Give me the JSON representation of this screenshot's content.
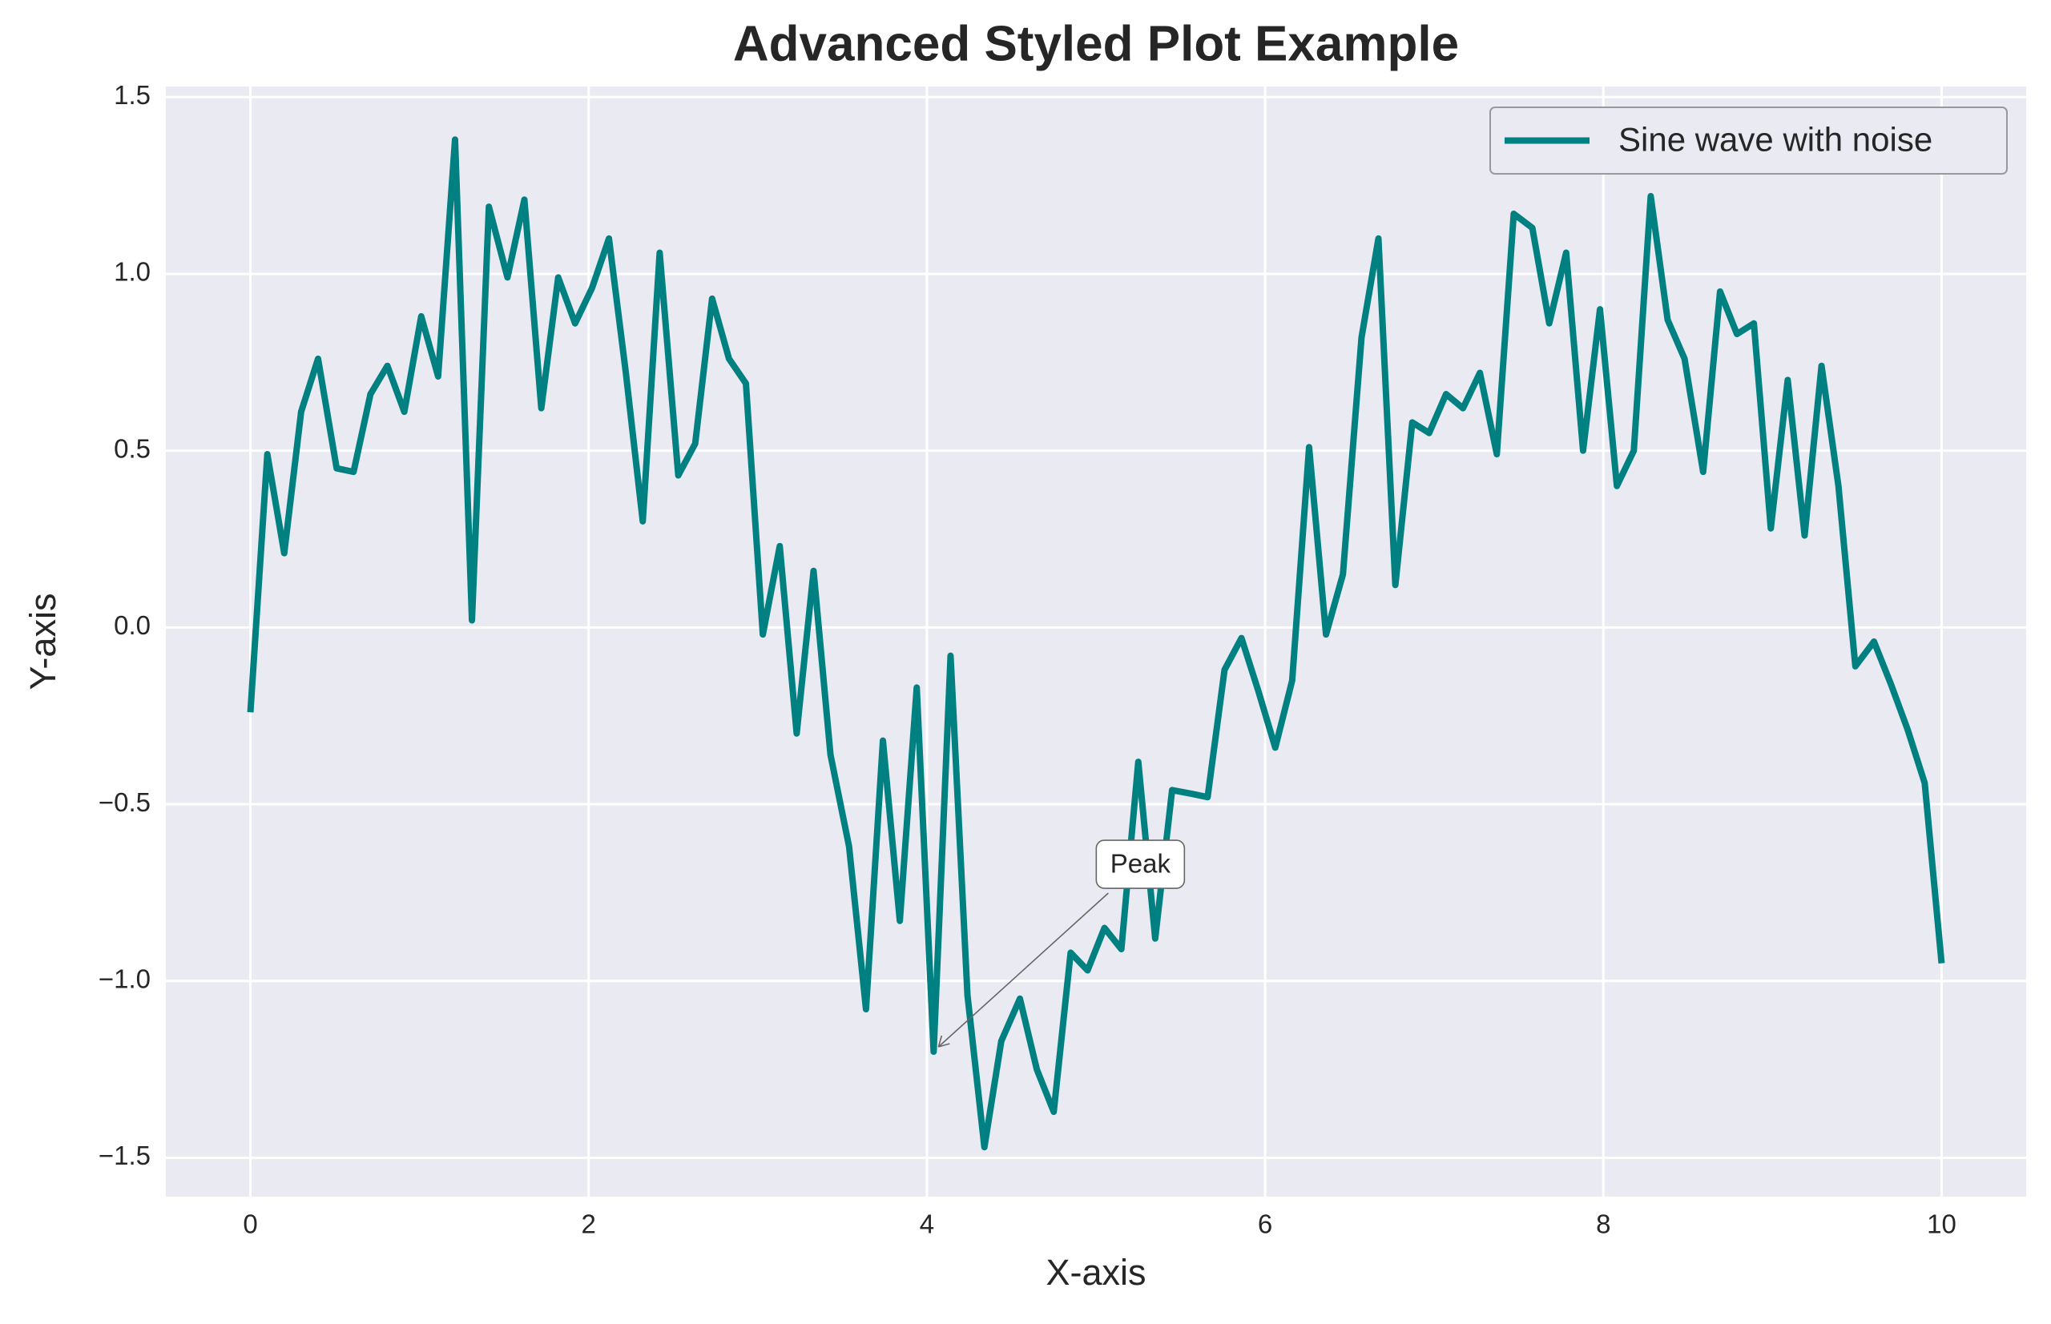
{
  "chart_data": {
    "type": "line",
    "title": "Advanced Styled Plot Example",
    "x_label": "X-axis",
    "y_label": "Y-axis",
    "x": [
      0,
      0.1,
      0.2,
      0.3,
      0.4,
      0.51,
      0.61,
      0.71,
      0.81,
      0.91,
      1.01,
      1.11,
      1.21,
      1.31,
      1.41,
      1.52,
      1.62,
      1.72,
      1.82,
      1.92,
      2.02,
      2.12,
      2.22,
      2.32,
      2.42,
      2.53,
      2.63,
      2.73,
      2.83,
      2.93,
      3.03,
      3.13,
      3.23,
      3.33,
      3.43,
      3.54,
      3.64,
      3.74,
      3.84,
      3.94,
      4.04,
      4.14,
      4.24,
      4.34,
      4.44,
      4.55,
      4.65,
      4.75,
      4.85,
      4.95,
      5.05,
      5.15,
      5.25,
      5.35,
      5.45,
      5.56,
      5.66,
      5.76,
      5.86,
      5.96,
      6.06,
      6.16,
      6.26,
      6.36,
      6.46,
      6.57,
      6.67,
      6.77,
      6.87,
      6.97,
      7.07,
      7.17,
      7.27,
      7.37,
      7.47,
      7.58,
      7.68,
      7.78,
      7.88,
      7.98,
      8.08,
      8.18,
      8.28,
      8.38,
      8.48,
      8.59,
      8.69,
      8.79,
      8.89,
      8.99,
      9.09,
      9.19,
      9.29,
      9.39,
      9.49,
      9.6,
      9.7,
      9.8,
      9.9,
      10
    ],
    "series": [
      {
        "name": "Sine wave with noise",
        "color": "#008080",
        "values": [
          -0.24,
          0.49,
          0.21,
          0.61,
          0.76,
          0.45,
          0.44,
          0.66,
          0.74,
          0.61,
          0.88,
          0.71,
          1.38,
          0.02,
          1.19,
          0.99,
          1.21,
          0.62,
          0.99,
          0.86,
          0.96,
          1.1,
          0.72,
          0.3,
          1.06,
          0.43,
          0.52,
          0.93,
          0.76,
          0.69,
          -0.02,
          0.23,
          -0.3,
          0.16,
          -0.36,
          -0.62,
          -1.08,
          -0.32,
          -0.83,
          -0.17,
          -1.2,
          -0.08,
          -1.04,
          -1.47,
          -1.17,
          -1.05,
          -1.25,
          -1.37,
          -0.92,
          -0.97,
          -0.85,
          -0.91,
          -0.38,
          -0.88,
          -0.46,
          -0.47,
          -0.48,
          -0.12,
          -0.03,
          -0.18,
          -0.34,
          -0.15,
          0.51,
          -0.02,
          0.15,
          0.82,
          1.1,
          0.12,
          0.58,
          0.55,
          0.66,
          0.62,
          0.72,
          0.49,
          1.17,
          1.13,
          0.86,
          1.06,
          0.5,
          0.9,
          0.4,
          0.5,
          1.22,
          0.87,
          0.76,
          0.44,
          0.95,
          0.83,
          0.86,
          0.28,
          0.7,
          0.26,
          0.74,
          0.4,
          -0.11,
          -0.04,
          -0.16,
          -0.29,
          -0.44,
          -0.95
        ]
      }
    ],
    "xlim": [
      -0.5,
      10.5
    ],
    "ylim": [
      -1.61,
      1.53
    ],
    "xticks": [
      0,
      2,
      4,
      6,
      8,
      10
    ],
    "yticks": [
      {
        "value": -1.5,
        "label": "−1.5"
      },
      {
        "value": -1.0,
        "label": "−1.0"
      },
      {
        "value": -0.5,
        "label": "−0.5"
      },
      {
        "value": 0,
        "label": "0.0"
      },
      0.5,
      {
        "value": 1.0,
        "label": "1.0"
      },
      1.5
    ],
    "grid": true,
    "legend": "upper right",
    "annotations": [
      {
        "text": "Peak",
        "x": 4.04,
        "y": -1.2
      }
    ]
  }
}
